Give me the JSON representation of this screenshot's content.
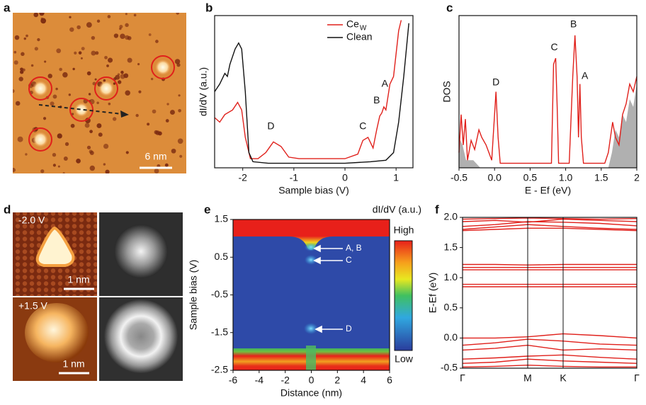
{
  "images": {
    "a": {
      "letter": "a",
      "scale_bar": "6 nm"
    },
    "d": {
      "letter": "d",
      "top_label": "-2.0 V",
      "bottom_label": "+1.5 V",
      "top_scale_bar": "1 nm",
      "bottom_scale_bar": "1 nm"
    }
  },
  "chart_data": [
    {
      "type": "line",
      "letter": "b",
      "xlabel": "Sample bias (V)",
      "ylabel": "dI/dV (a.u.)",
      "xlim": [
        -2.55,
        1.33
      ],
      "ylim": [
        0,
        1
      ],
      "xticks": [
        -2,
        -1,
        0,
        1
      ],
      "annotations": [
        "D",
        "C",
        "B",
        "A"
      ],
      "series": [
        {
          "name": "Ce",
          "name_subscript": "W",
          "color": "#e0201b",
          "x": [
            -2.55,
            -2.45,
            -2.35,
            -2.2,
            -2.1,
            -2.02,
            -1.95,
            -1.85,
            -1.7,
            -1.55,
            -1.4,
            -1.25,
            -1.1,
            -0.9,
            0,
            0.25,
            0.35,
            0.45,
            0.55,
            0.62,
            0.68,
            0.72,
            0.76,
            0.8,
            0.88,
            0.95,
            1.05,
            1.1
          ],
          "values": [
            0.33,
            0.3,
            0.35,
            0.38,
            0.43,
            0.38,
            0.2,
            0.06,
            0.06,
            0.1,
            0.17,
            0.14,
            0.07,
            0.06,
            0.06,
            0.09,
            0.18,
            0.2,
            0.13,
            0.25,
            0.34,
            0.36,
            0.4,
            0.38,
            0.55,
            0.6,
            0.9,
            0.97
          ]
        },
        {
          "name": "Clean",
          "color": "#111111",
          "x": [
            -2.55,
            -2.45,
            -2.35,
            -2.3,
            -2.25,
            -2.15,
            -2.08,
            -2.02,
            -1.95,
            -1.88,
            -1.8,
            -1.5,
            -1,
            0,
            0.5,
            0.8,
            0.95,
            1.05,
            1.15,
            1.25
          ],
          "values": [
            0.5,
            0.55,
            0.62,
            0.6,
            0.68,
            0.78,
            0.82,
            0.78,
            0.5,
            0.1,
            0.04,
            0.03,
            0.03,
            0.03,
            0.04,
            0.05,
            0.1,
            0.3,
            0.6,
            0.95
          ]
        }
      ]
    },
    {
      "type": "line",
      "letter": "c",
      "xlabel": "E - Ef (eV)",
      "ylabel": "DOS",
      "xlim": [
        -0.5,
        2
      ],
      "ylim": [
        0,
        1
      ],
      "xticks": [
        -0.5,
        {
          "value": 0,
          "label": "0.0"
        },
        0.5,
        {
          "value": 1,
          "label": "1.0"
        },
        1.5,
        2
      ],
      "annotations": [
        "D",
        "C",
        "B",
        "A"
      ],
      "series": [
        {
          "color": "#b0b0b0",
          "fill": true,
          "x": [
            -0.5,
            -0.45,
            -0.4,
            -0.3,
            -0.2,
            1.6,
            1.65,
            1.7,
            1.75,
            1.8,
            1.85,
            1.9,
            1.95,
            2
          ],
          "values": [
            0.2,
            0.15,
            0.05,
            0.05,
            0,
            0,
            0.1,
            0.25,
            0.2,
            0.35,
            0.3,
            0.45,
            0.4,
            0.55
          ]
        },
        {
          "color": "#e0201b",
          "x": [
            -0.5,
            -0.47,
            -0.44,
            -0.41,
            -0.38,
            -0.33,
            -0.28,
            -0.22,
            -0.18,
            -0.12,
            -0.08,
            -0.04,
            -0.02,
            0.02,
            0.05,
            0.08,
            0.2,
            0.7,
            0.8,
            0.83,
            0.86,
            0.88,
            0.9,
            1.05,
            1.1,
            1.13,
            1.16,
            1.18,
            1.2,
            1.22,
            1.25,
            1.55,
            1.6,
            1.66,
            1.7,
            1.75,
            1.8,
            1.85,
            1.9,
            1.95,
            2
          ],
          "values": [
            0.1,
            0.35,
            0.15,
            0.32,
            0.05,
            0.18,
            0.12,
            0.25,
            0.2,
            0.15,
            0.1,
            0.05,
            0.2,
            0.5,
            0.2,
            0.03,
            0.03,
            0.03,
            0.03,
            0.68,
            0.72,
            0.4,
            0.03,
            0.03,
            0.6,
            0.87,
            0.6,
            0.2,
            0.55,
            0.2,
            0.03,
            0.03,
            0.1,
            0.3,
            0.2,
            0.15,
            0.35,
            0.42,
            0.55,
            0.5,
            0.6
          ]
        }
      ]
    },
    {
      "type": "heatmap",
      "letter": "e",
      "title": "dI/dV (a.u.)",
      "xlabel": "Distance (nm)",
      "ylabel": "Sample bias (V)",
      "xlim": [
        -6,
        6
      ],
      "ylim": [
        -2.5,
        1.5
      ],
      "xticks": [
        -6,
        -4,
        -2,
        0,
        2,
        4,
        6
      ],
      "yticks": [
        1.5,
        0.5,
        -0.5,
        -1.5,
        -2.5
      ],
      "colorbar_labels": [
        "High",
        "Low"
      ],
      "annotations": [
        "A, B",
        "C",
        "D"
      ]
    },
    {
      "type": "band",
      "letter": "f",
      "color": "#e0201b",
      "grid": true,
      "ylabel": "E-Ef (eV)",
      "xlim": [
        0,
        2.46
      ],
      "ylim": [
        -0.5,
        2
      ],
      "xticks": [
        {
          "value": 0,
          "label": "Γ"
        },
        {
          "value": 0.92,
          "label": "M"
        },
        {
          "value": 1.42,
          "label": "K"
        },
        {
          "value": 2.46,
          "label": "Γ"
        }
      ],
      "yticks": [
        {
          "value": 2,
          "label": "2.0"
        },
        1.5,
        {
          "value": 1,
          "label": "1.0"
        },
        0.5,
        {
          "value": 0,
          "label": "0.0"
        },
        -0.5
      ],
      "x": [
        0,
        0.46,
        0.92,
        1.42,
        1.94,
        2.46
      ],
      "series": [
        {
          "values": [
            1.97,
            1.98,
            1.99,
            1.98,
            1.97,
            1.98
          ]
        },
        {
          "values": [
            1.93,
            1.95,
            1.92,
            1.97,
            1.95,
            1.93
          ]
        },
        {
          "values": [
            1.85,
            1.88,
            1.93,
            1.92,
            1.9,
            1.86
          ]
        },
        {
          "values": [
            1.8,
            1.84,
            1.88,
            1.85,
            1.82,
            1.8
          ]
        },
        {
          "values": [
            1.78,
            1.8,
            1.82,
            1.82,
            1.8,
            1.78
          ]
        },
        {
          "values": [
            1.22,
            1.22,
            1.21,
            1.22,
            1.22,
            1.22
          ]
        },
        {
          "values": [
            1.17,
            1.17,
            1.17,
            1.17,
            1.17,
            1.17
          ]
        },
        {
          "values": [
            1.13,
            1.13,
            1.13,
            1.13,
            1.13,
            1.13
          ]
        },
        {
          "values": [
            0.89,
            0.89,
            0.89,
            0.89,
            0.89,
            0.89
          ]
        },
        {
          "values": [
            0.85,
            0.85,
            0.85,
            0.85,
            0.85,
            0.85
          ]
        },
        {
          "values": [
            0,
            0,
            0.02,
            0.07,
            0.04,
            0
          ]
        },
        {
          "values": [
            -0.12,
            -0.08,
            -0.02,
            -0.05,
            -0.1,
            -0.12
          ]
        },
        {
          "values": [
            -0.2,
            -0.17,
            -0.12,
            -0.2,
            -0.18,
            -0.2
          ]
        },
        {
          "values": [
            -0.35,
            -0.33,
            -0.3,
            -0.28,
            -0.32,
            -0.35
          ]
        },
        {
          "values": [
            -0.42,
            -0.4,
            -0.35,
            -0.38,
            -0.4,
            -0.42
          ]
        },
        {
          "values": [
            -0.48,
            -0.47,
            -0.45,
            -0.47,
            -0.48,
            -0.48
          ]
        }
      ]
    }
  ]
}
